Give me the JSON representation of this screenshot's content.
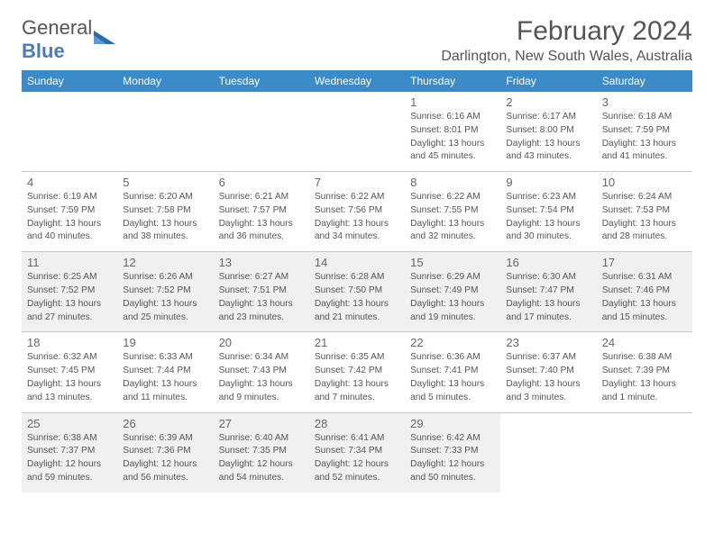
{
  "logo_general": "General",
  "logo_blue": "Blue",
  "title": "February 2024",
  "location": "Darlington, New South Wales, Australia",
  "colors": {
    "header_bg": "#3b8bc9",
    "header_text": "#ffffff",
    "body_text": "#555555",
    "shade_bg": "#f0f0f0",
    "border": "#c9c9c9",
    "logo_accent": "#4a7db8"
  },
  "day_names": [
    "Sunday",
    "Monday",
    "Tuesday",
    "Wednesday",
    "Thursday",
    "Friday",
    "Saturday"
  ],
  "weeks": [
    [
      null,
      null,
      null,
      null,
      {
        "n": "1",
        "sr": "Sunrise: 6:16 AM",
        "ss": "Sunset: 8:01 PM",
        "dl": "Daylight: 13 hours and 45 minutes."
      },
      {
        "n": "2",
        "sr": "Sunrise: 6:17 AM",
        "ss": "Sunset: 8:00 PM",
        "dl": "Daylight: 13 hours and 43 minutes."
      },
      {
        "n": "3",
        "sr": "Sunrise: 6:18 AM",
        "ss": "Sunset: 7:59 PM",
        "dl": "Daylight: 13 hours and 41 minutes."
      }
    ],
    [
      {
        "n": "4",
        "sr": "Sunrise: 6:19 AM",
        "ss": "Sunset: 7:59 PM",
        "dl": "Daylight: 13 hours and 40 minutes."
      },
      {
        "n": "5",
        "sr": "Sunrise: 6:20 AM",
        "ss": "Sunset: 7:58 PM",
        "dl": "Daylight: 13 hours and 38 minutes."
      },
      {
        "n": "6",
        "sr": "Sunrise: 6:21 AM",
        "ss": "Sunset: 7:57 PM",
        "dl": "Daylight: 13 hours and 36 minutes."
      },
      {
        "n": "7",
        "sr": "Sunrise: 6:22 AM",
        "ss": "Sunset: 7:56 PM",
        "dl": "Daylight: 13 hours and 34 minutes."
      },
      {
        "n": "8",
        "sr": "Sunrise: 6:22 AM",
        "ss": "Sunset: 7:55 PM",
        "dl": "Daylight: 13 hours and 32 minutes."
      },
      {
        "n": "9",
        "sr": "Sunrise: 6:23 AM",
        "ss": "Sunset: 7:54 PM",
        "dl": "Daylight: 13 hours and 30 minutes."
      },
      {
        "n": "10",
        "sr": "Sunrise: 6:24 AM",
        "ss": "Sunset: 7:53 PM",
        "dl": "Daylight: 13 hours and 28 minutes."
      }
    ],
    [
      {
        "n": "11",
        "sr": "Sunrise: 6:25 AM",
        "ss": "Sunset: 7:52 PM",
        "dl": "Daylight: 13 hours and 27 minutes."
      },
      {
        "n": "12",
        "sr": "Sunrise: 6:26 AM",
        "ss": "Sunset: 7:52 PM",
        "dl": "Daylight: 13 hours and 25 minutes."
      },
      {
        "n": "13",
        "sr": "Sunrise: 6:27 AM",
        "ss": "Sunset: 7:51 PM",
        "dl": "Daylight: 13 hours and 23 minutes."
      },
      {
        "n": "14",
        "sr": "Sunrise: 6:28 AM",
        "ss": "Sunset: 7:50 PM",
        "dl": "Daylight: 13 hours and 21 minutes."
      },
      {
        "n": "15",
        "sr": "Sunrise: 6:29 AM",
        "ss": "Sunset: 7:49 PM",
        "dl": "Daylight: 13 hours and 19 minutes."
      },
      {
        "n": "16",
        "sr": "Sunrise: 6:30 AM",
        "ss": "Sunset: 7:47 PM",
        "dl": "Daylight: 13 hours and 17 minutes."
      },
      {
        "n": "17",
        "sr": "Sunrise: 6:31 AM",
        "ss": "Sunset: 7:46 PM",
        "dl": "Daylight: 13 hours and 15 minutes."
      }
    ],
    [
      {
        "n": "18",
        "sr": "Sunrise: 6:32 AM",
        "ss": "Sunset: 7:45 PM",
        "dl": "Daylight: 13 hours and 13 minutes."
      },
      {
        "n": "19",
        "sr": "Sunrise: 6:33 AM",
        "ss": "Sunset: 7:44 PM",
        "dl": "Daylight: 13 hours and 11 minutes."
      },
      {
        "n": "20",
        "sr": "Sunrise: 6:34 AM",
        "ss": "Sunset: 7:43 PM",
        "dl": "Daylight: 13 hours and 9 minutes."
      },
      {
        "n": "21",
        "sr": "Sunrise: 6:35 AM",
        "ss": "Sunset: 7:42 PM",
        "dl": "Daylight: 13 hours and 7 minutes."
      },
      {
        "n": "22",
        "sr": "Sunrise: 6:36 AM",
        "ss": "Sunset: 7:41 PM",
        "dl": "Daylight: 13 hours and 5 minutes."
      },
      {
        "n": "23",
        "sr": "Sunrise: 6:37 AM",
        "ss": "Sunset: 7:40 PM",
        "dl": "Daylight: 13 hours and 3 minutes."
      },
      {
        "n": "24",
        "sr": "Sunrise: 6:38 AM",
        "ss": "Sunset: 7:39 PM",
        "dl": "Daylight: 13 hours and 1 minute."
      }
    ],
    [
      {
        "n": "25",
        "sr": "Sunrise: 6:38 AM",
        "ss": "Sunset: 7:37 PM",
        "dl": "Daylight: 12 hours and 59 minutes."
      },
      {
        "n": "26",
        "sr": "Sunrise: 6:39 AM",
        "ss": "Sunset: 7:36 PM",
        "dl": "Daylight: 12 hours and 56 minutes."
      },
      {
        "n": "27",
        "sr": "Sunrise: 6:40 AM",
        "ss": "Sunset: 7:35 PM",
        "dl": "Daylight: 12 hours and 54 minutes."
      },
      {
        "n": "28",
        "sr": "Sunrise: 6:41 AM",
        "ss": "Sunset: 7:34 PM",
        "dl": "Daylight: 12 hours and 52 minutes."
      },
      {
        "n": "29",
        "sr": "Sunrise: 6:42 AM",
        "ss": "Sunset: 7:33 PM",
        "dl": "Daylight: 12 hours and 50 minutes."
      },
      null,
      null
    ]
  ],
  "shaded_rows": [
    2,
    4
  ]
}
